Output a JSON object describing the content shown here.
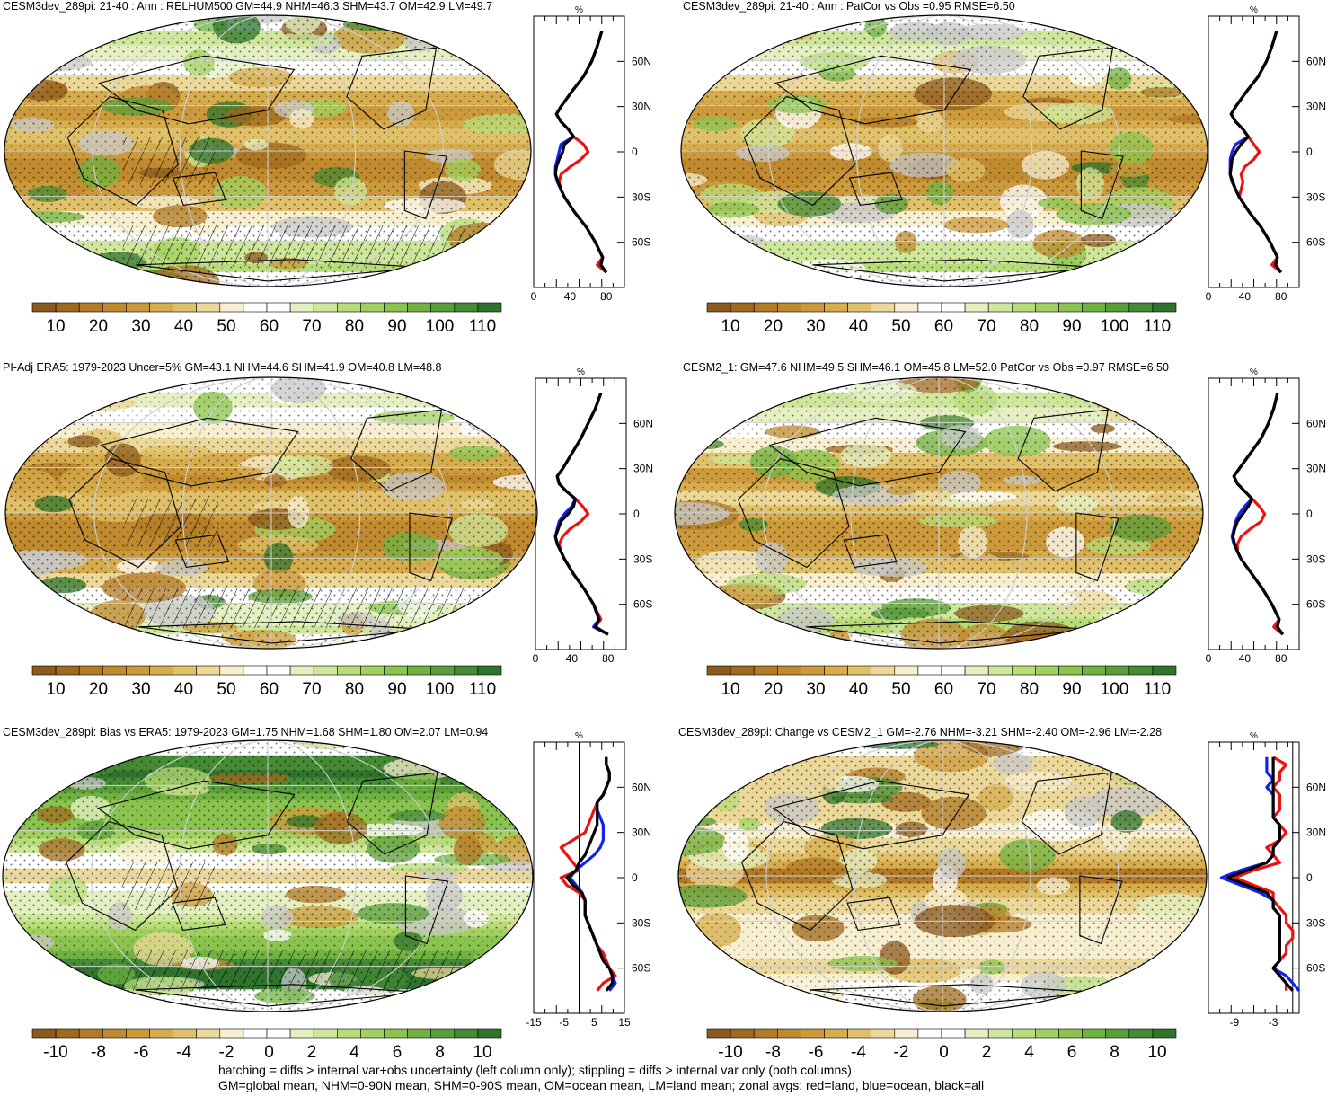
{
  "footer": {
    "line1": "hatching = diffs > internal var+obs uncertainty (left column only); stippling = diffs > internal var only (both columns)",
    "line2": "GM=global mean, NHM=0-90N mean, SHM=0-90S mean, OM=ocean mean, LM=land mean; zonal avgs: red=land, blue=ocean, black=all"
  },
  "colors": {
    "land": "#ee1111",
    "ocean": "#1122ee",
    "all": "#000000",
    "abs_scale": [
      "#8c5a1e",
      "#a0691e",
      "#b27a26",
      "#c08a2e",
      "#cc9a3a",
      "#d6ac4c",
      "#e0c068",
      "#ecd898",
      "#f7efcf",
      "#ffffff",
      "#ffffff",
      "#e4f0c2",
      "#cfe79a",
      "#b7dc78",
      "#a1d05f",
      "#8ac44f",
      "#70b242",
      "#5a9e3a",
      "#458a34",
      "#2f742c"
    ],
    "diff_scale": [
      "#8c5a1e",
      "#a0691e",
      "#b27a26",
      "#c08a2e",
      "#cc9a3a",
      "#d6ac4c",
      "#e0c068",
      "#ecd898",
      "#f7efcf",
      "#ffffff",
      "#ffffff",
      "#e4f0c2",
      "#cfe79a",
      "#b7dc78",
      "#a1d05f",
      "#8ac44f",
      "#70b242",
      "#5a9e3a",
      "#458a34",
      "#2f742c"
    ],
    "missing": "#c8c8c8",
    "graticule": "#cfcfcf"
  },
  "chart_data": [
    {
      "type": "heatmap",
      "title": "CESM3dev_289pi: 21-40 : Ann : RELHUM500 GM=44.9 NHM=46.3 SHM=43.7 OM=42.9 LM=49.7",
      "field": "abs",
      "colorbar_ticks": [
        "10",
        "20",
        "30",
        "40",
        "50",
        "60",
        "70",
        "80",
        "90",
        "100",
        "110"
      ],
      "zonal": {
        "unit": "%",
        "xticks": [
          0,
          40,
          80
        ],
        "xlim": [
          0,
          100
        ],
        "lat_ticks": [
          "60N",
          "30N",
          "0",
          "30S",
          "60S"
        ],
        "lat": [
          80,
          70,
          60,
          50,
          40,
          30,
          25,
          20,
          15,
          10,
          5,
          0,
          -5,
          -10,
          -15,
          -20,
          -25,
          -30,
          -40,
          -50,
          -60,
          -70,
          -75,
          -80
        ],
        "land": [
          75,
          70,
          64,
          55,
          42,
          30,
          25,
          30,
          38,
          44,
          55,
          60,
          52,
          40,
          30,
          28,
          30,
          34,
          45,
          58,
          68,
          76,
          70,
          80
        ],
        "ocean": [
          75,
          70,
          64,
          55,
          42,
          30,
          25,
          30,
          38,
          44,
          30,
          28,
          26,
          24,
          24,
          26,
          30,
          34,
          45,
          58,
          68,
          76,
          74,
          80
        ],
        "all": [
          75,
          70,
          64,
          55,
          42,
          30,
          25,
          30,
          38,
          44,
          34,
          32,
          28,
          25,
          24,
          27,
          30,
          34,
          45,
          58,
          68,
          76,
          74,
          80
        ]
      }
    },
    {
      "type": "heatmap",
      "title": "CESM3dev_289pi: 21-40 : Ann : PatCor vs Obs =0.95 RMSE=6.50",
      "field": "abs",
      "colorbar_ticks": [
        "10",
        "20",
        "30",
        "40",
        "50",
        "60",
        "70",
        "80",
        "90",
        "100",
        "110"
      ],
      "zonal": {
        "unit": "%",
        "xticks": [
          0,
          40,
          80
        ],
        "xlim": [
          0,
          100
        ],
        "lat_ticks": [
          "60N",
          "30N",
          "0",
          "30S",
          "60S"
        ],
        "lat": [
          80,
          70,
          60,
          50,
          40,
          30,
          25,
          20,
          15,
          10,
          5,
          0,
          -5,
          -10,
          -15,
          -20,
          -25,
          -30,
          -40,
          -50,
          -60,
          -70,
          -75,
          -80
        ],
        "land": [
          75,
          70,
          64,
          55,
          42,
          30,
          25,
          30,
          38,
          44,
          50,
          56,
          50,
          40,
          36,
          38,
          36,
          34,
          45,
          58,
          68,
          76,
          70,
          80
        ],
        "ocean": [
          75,
          70,
          64,
          55,
          42,
          30,
          25,
          30,
          38,
          44,
          30,
          26,
          24,
          24,
          24,
          26,
          30,
          34,
          45,
          58,
          68,
          76,
          74,
          80
        ],
        "all": [
          75,
          70,
          64,
          55,
          42,
          30,
          25,
          30,
          38,
          44,
          36,
          30,
          26,
          25,
          24,
          27,
          30,
          34,
          45,
          58,
          68,
          76,
          74,
          80
        ]
      }
    },
    {
      "type": "heatmap",
      "title": "PI-Adj ERA5: 1979-2023 Uncer=5% GM=43.1 NHM=44.6 SHM=41.9 OM=40.8 LM=48.8",
      "field": "abs",
      "colorbar_ticks": [
        "10",
        "20",
        "30",
        "40",
        "50",
        "60",
        "70",
        "80",
        "90",
        "100",
        "110"
      ],
      "zonal": {
        "unit": "%",
        "xticks": [
          0,
          40,
          80
        ],
        "xlim": [
          0,
          100
        ],
        "lat_ticks": [
          "60N",
          "30N",
          "0",
          "30S",
          "60S"
        ],
        "lat": [
          80,
          70,
          60,
          50,
          40,
          30,
          25,
          20,
          15,
          10,
          5,
          0,
          -5,
          -10,
          -15,
          -20,
          -25,
          -30,
          -40,
          -50,
          -60,
          -70,
          -75,
          -80
        ],
        "land": [
          72,
          66,
          58,
          50,
          40,
          30,
          24,
          26,
          34,
          44,
          52,
          58,
          50,
          38,
          30,
          26,
          28,
          32,
          42,
          54,
          64,
          72,
          66,
          80
        ],
        "ocean": [
          72,
          66,
          58,
          50,
          40,
          30,
          24,
          26,
          34,
          44,
          40,
          32,
          26,
          24,
          22,
          24,
          28,
          32,
          42,
          54,
          64,
          70,
          64,
          80
        ],
        "all": [
          72,
          66,
          58,
          50,
          40,
          30,
          24,
          26,
          34,
          44,
          42,
          36,
          28,
          25,
          22,
          24,
          28,
          32,
          42,
          54,
          64,
          70,
          66,
          80
        ]
      }
    },
    {
      "type": "heatmap",
      "title": "CESM2_1: GM=47.6 NHM=49.5 SHM=46.1 OM=45.8 LM=52.0 PatCor vs Obs =0.97 RMSE=6.50",
      "field": "abs",
      "colorbar_ticks": [
        "10",
        "20",
        "30",
        "40",
        "50",
        "60",
        "70",
        "80",
        "90",
        "100",
        "110"
      ],
      "zonal": {
        "unit": "%",
        "xticks": [
          0,
          40,
          80
        ],
        "xlim": [
          0,
          100
        ],
        "lat_ticks": [
          "60N",
          "30N",
          "0",
          "30S",
          "60S"
        ],
        "lat": [
          80,
          70,
          60,
          50,
          40,
          30,
          25,
          20,
          15,
          10,
          5,
          0,
          -5,
          -10,
          -15,
          -20,
          -25,
          -30,
          -40,
          -50,
          -60,
          -70,
          -75,
          -80
        ],
        "land": [
          76,
          72,
          66,
          58,
          46,
          34,
          28,
          32,
          40,
          48,
          56,
          62,
          58,
          46,
          36,
          32,
          32,
          36,
          48,
          60,
          70,
          78,
          72,
          82
        ],
        "ocean": [
          76,
          72,
          66,
          58,
          46,
          34,
          28,
          32,
          40,
          48,
          40,
          34,
          30,
          28,
          26,
          28,
          32,
          36,
          48,
          60,
          70,
          78,
          76,
          82
        ],
        "all": [
          76,
          72,
          66,
          58,
          46,
          34,
          28,
          32,
          40,
          48,
          44,
          38,
          32,
          29,
          27,
          29,
          32,
          36,
          48,
          60,
          70,
          78,
          76,
          82
        ]
      }
    },
    {
      "type": "heatmap",
      "title": "CESM3dev_289pi: Bias vs ERA5: 1979-2023 GM=1.75 NHM=1.68 SHM=1.80 OM=2.07 LM=0.94",
      "field": "diff",
      "colorbar_ticks": [
        "-10",
        "-8",
        "-6",
        "-4",
        "-2",
        "0",
        "2",
        "4",
        "6",
        "8",
        "10"
      ],
      "zonal": {
        "unit": "%",
        "xticks": [
          -15,
          -5,
          5,
          15
        ],
        "xlim": [
          -15,
          15
        ],
        "lat_ticks": [
          "60N",
          "30N",
          "0",
          "30S",
          "60S"
        ],
        "lat": [
          80,
          75,
          70,
          65,
          60,
          55,
          50,
          45,
          40,
          35,
          30,
          25,
          20,
          15,
          10,
          5,
          0,
          -5,
          -10,
          -15,
          -20,
          -25,
          -30,
          -35,
          -40,
          -45,
          -50,
          -55,
          -60,
          -65,
          -70,
          -75
        ],
        "land": [
          9,
          9,
          10,
          10,
          9,
          8,
          6,
          5,
          4,
          3,
          2,
          -2,
          -6,
          -4,
          -2,
          0,
          -6,
          -4,
          0,
          2,
          2,
          2,
          3,
          4,
          5,
          6,
          8,
          9,
          10,
          12,
          8,
          6
        ],
        "ocean": [
          9,
          9,
          10,
          10,
          9,
          8,
          6,
          6,
          7,
          8,
          8,
          8,
          7,
          5,
          2,
          -1,
          -3,
          -1,
          1,
          2,
          2,
          2,
          3,
          4,
          5,
          6,
          7,
          8,
          10,
          11,
          12,
          10
        ],
        "all": [
          9,
          9,
          10,
          10,
          9,
          8,
          6,
          6,
          6,
          6,
          5,
          4,
          3,
          2,
          0,
          -1,
          -4,
          -2,
          1,
          2,
          2,
          2,
          3,
          4,
          5,
          6,
          7,
          8,
          10,
          11,
          11,
          9
        ]
      }
    },
    {
      "type": "heatmap",
      "title": "CESM3dev_289pi: Change vs CESM2_1 GM=-2.76 NHM=-3.21 SHM=-2.40 OM=-2.96 LM=-2.28",
      "field": "diff",
      "colorbar_ticks": [
        "-10",
        "-8",
        "-6",
        "-4",
        "-2",
        "0",
        "2",
        "4",
        "6",
        "8",
        "10"
      ],
      "zonal": {
        "unit": "%",
        "xticks": [
          -9,
          -3
        ],
        "xlim": [
          -13,
          1
        ],
        "lat_ticks": [
          "60N",
          "30N",
          "0",
          "30S",
          "60S"
        ],
        "lat": [
          80,
          75,
          70,
          65,
          60,
          55,
          50,
          45,
          40,
          35,
          30,
          25,
          20,
          15,
          10,
          5,
          0,
          -5,
          -10,
          -15,
          -20,
          -25,
          -30,
          -35,
          -40,
          -45,
          -50,
          -55,
          -60,
          -65,
          -70,
          -75
        ],
        "land": [
          -3,
          -1,
          -2,
          -2,
          -3,
          -2,
          -2,
          -2,
          -3,
          -2,
          -1,
          -2,
          -4,
          -3,
          -2,
          -6,
          -9,
          -6,
          -3,
          -3,
          -2,
          -1,
          -1,
          0,
          0,
          -1,
          -1,
          -2,
          -3,
          -2,
          -1,
          -1
        ],
        "ocean": [
          -4,
          -4,
          -4,
          -3,
          -4,
          -3,
          -3,
          -3,
          -3,
          -2,
          -2,
          -2,
          -3,
          -3,
          -4,
          -8,
          -11,
          -8,
          -5,
          -3,
          -3,
          -2,
          -2,
          -2,
          -2,
          -2,
          -2,
          -2,
          -3,
          -1,
          0,
          1
        ],
        "all": [
          -3,
          -3,
          -3,
          -3,
          -3,
          -3,
          -3,
          -3,
          -3,
          -2,
          -2,
          -2,
          -3,
          -3,
          -4,
          -7,
          -10,
          -7,
          -4,
          -3,
          -3,
          -2,
          -2,
          -2,
          -2,
          -2,
          -2,
          -2,
          -3,
          -2,
          -1,
          0
        ]
      }
    }
  ]
}
